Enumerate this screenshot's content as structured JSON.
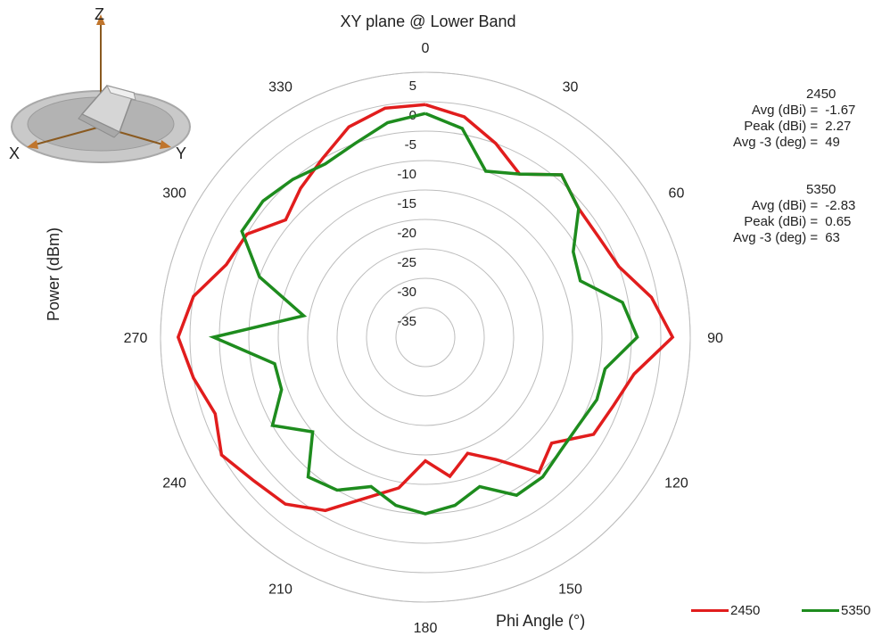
{
  "chart_data": {
    "type": "polar-line",
    "title": "XY plane @ Lower Band",
    "xlabel": "Phi  Angle (°)",
    "ylabel": "Power (dBm)",
    "radial_range": [
      -40,
      5
    ],
    "radial_ticks": [
      5,
      0,
      -5,
      -10,
      -15,
      -20,
      -25,
      -30,
      -35
    ],
    "angle_ticks": [
      0,
      30,
      60,
      90,
      120,
      150,
      180,
      210,
      240,
      270,
      300,
      330
    ],
    "angles": [
      0,
      10,
      20,
      30,
      40,
      50,
      60,
      70,
      80,
      90,
      100,
      110,
      120,
      130,
      140,
      150,
      160,
      170,
      180,
      190,
      200,
      210,
      220,
      230,
      240,
      250,
      260,
      270,
      280,
      290,
      300,
      310,
      320,
      330,
      340,
      350
    ],
    "series": [
      {
        "name": "2450",
        "color": "#e11d1d",
        "values": [
          -0.5,
          -2,
          -5,
          -8,
          -4,
          -6,
          -6,
          -5,
          -1,
          2,
          -4,
          -6,
          -7,
          -12,
          -10,
          -16,
          -19,
          -16,
          -19,
          -14,
          -11,
          -6,
          -3,
          -2,
          0,
          -2,
          0,
          2,
          0,
          -4,
          -5,
          -9,
          -7,
          -5,
          -2,
          -0.5
        ]
      },
      {
        "name": "5350",
        "color": "#1e8c1e",
        "values": [
          -2,
          -4,
          -10,
          -8,
          -4,
          -6,
          -11,
          -12,
          -6,
          -4,
          -9,
          -9,
          -10,
          -10,
          -9,
          -9,
          -13,
          -11,
          -10,
          -11,
          -13,
          -10,
          -9,
          -15,
          -10,
          -14,
          -14,
          -4,
          -19,
          -10,
          -4,
          -4,
          -5,
          -6,
          -5,
          -3
        ]
      }
    ],
    "legend_position": "bottom-right",
    "grid": true
  },
  "stats": [
    {
      "title": "2450",
      "rows": [
        {
          "label": "Avg (dBi) =",
          "value": "-1.67"
        },
        {
          "label": "Peak (dBi) =",
          "value": "2.27"
        },
        {
          "label": "Avg -3 (deg) =",
          "value": "49"
        }
      ]
    },
    {
      "title": "5350",
      "rows": [
        {
          "label": "Avg (dBi) =",
          "value": "-2.83"
        },
        {
          "label": "Peak (dBi) =",
          "value": "0.65"
        },
        {
          "label": "Avg -3 (deg) =",
          "value": "63"
        }
      ]
    }
  ],
  "orientation_icon": {
    "axis_labels": [
      "Z",
      "X",
      "Y"
    ]
  }
}
